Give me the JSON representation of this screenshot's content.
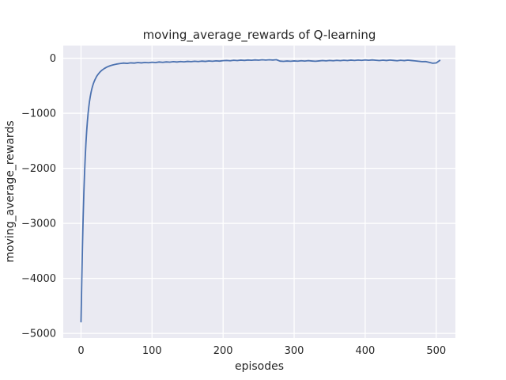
{
  "figure": {
    "background": "#ffffff"
  },
  "chart_data": {
    "type": "line",
    "title": "moving_average_rewards of Q-learning",
    "xlabel": "episodes",
    "ylabel": "moving_average_rewards",
    "xlim": [
      -25,
      527
    ],
    "ylim": [
      -5085,
      230
    ],
    "x_ticks": [
      0,
      100,
      200,
      300,
      400,
      500
    ],
    "y_ticks": [
      0,
      -1000,
      -2000,
      -3000,
      -4000,
      -5000
    ],
    "grid": true,
    "legend": "none",
    "style": {
      "plot_bg": "#eaeaf2",
      "grid_color": "#ffffff",
      "line_color": "#4c72b0",
      "text_color": "#262626"
    },
    "series": [
      {
        "name": "moving_average_rewards",
        "x": [
          0,
          1,
          2,
          3,
          4,
          5,
          6,
          7,
          8,
          9,
          10,
          11,
          12,
          13,
          14,
          15,
          16,
          17,
          18,
          19,
          20,
          22,
          24,
          26,
          28,
          30,
          33,
          36,
          39,
          42,
          45,
          48,
          50,
          55,
          60,
          65,
          70,
          75,
          80,
          85,
          90,
          95,
          100,
          105,
          110,
          115,
          120,
          125,
          130,
          135,
          140,
          145,
          150,
          155,
          160,
          165,
          170,
          175,
          180,
          185,
          190,
          195,
          200,
          205,
          210,
          215,
          220,
          225,
          230,
          235,
          240,
          245,
          250,
          255,
          260,
          265,
          270,
          275,
          280,
          285,
          290,
          295,
          300,
          305,
          310,
          315,
          320,
          325,
          330,
          335,
          340,
          345,
          350,
          355,
          360,
          365,
          370,
          375,
          380,
          385,
          390,
          395,
          400,
          405,
          410,
          415,
          420,
          425,
          430,
          435,
          440,
          445,
          450,
          455,
          460,
          465,
          470,
          475,
          480,
          485,
          490,
          495,
          500,
          505
        ],
        "y": [
          -4790,
          -4100,
          -3450,
          -2900,
          -2450,
          -2080,
          -1780,
          -1530,
          -1320,
          -1145,
          -1000,
          -880,
          -780,
          -700,
          -630,
          -570,
          -520,
          -477,
          -440,
          -408,
          -380,
          -330,
          -292,
          -260,
          -234,
          -212,
          -185,
          -163,
          -146,
          -132,
          -121,
          -112,
          -106,
          -96,
          -88,
          -93,
          -84,
          -88,
          -78,
          -84,
          -76,
          -81,
          -72,
          -78,
          -68,
          -74,
          -66,
          -71,
          -62,
          -68,
          -60,
          -65,
          -57,
          -62,
          -54,
          -60,
          -52,
          -57,
          -49,
          -55,
          -47,
          -52,
          -44,
          -40,
          -45,
          -37,
          -42,
          -34,
          -39,
          -32,
          -37,
          -30,
          -35,
          -28,
          -33,
          -27,
          -32,
          -26,
          -52,
          -56,
          -50,
          -55,
          -48,
          -53,
          -46,
          -51,
          -44,
          -50,
          -55,
          -48,
          -42,
          -47,
          -40,
          -46,
          -38,
          -44,
          -36,
          -42,
          -34,
          -40,
          -33,
          -38,
          -31,
          -37,
          -30,
          -36,
          -42,
          -35,
          -41,
          -33,
          -39,
          -45,
          -37,
          -43,
          -35,
          -41,
          -47,
          -54,
          -62,
          -60,
          -75,
          -90,
          -85,
          -40
        ]
      }
    ]
  }
}
